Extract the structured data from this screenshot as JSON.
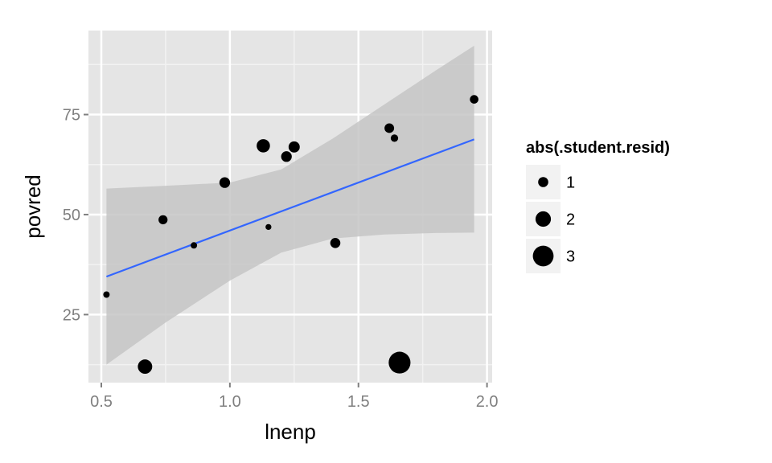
{
  "chart_data": {
    "type": "scatter",
    "xlabel": "lnenp",
    "ylabel": "povred",
    "xlim": [
      0.45,
      2.02
    ],
    "ylim": [
      8,
      96
    ],
    "x_ticks": [
      0.5,
      1.0,
      1.5,
      2.0
    ],
    "x_tick_labels": [
      "0.5",
      "1.0",
      "1.5",
      "2.0"
    ],
    "y_ticks": [
      25,
      50,
      75
    ],
    "y_tick_labels": [
      "25",
      "50",
      "75"
    ],
    "grid": true,
    "legend_position": "right",
    "legend": {
      "title": "abs(.student.resid)",
      "entries": [
        {
          "label": "1",
          "value": 1
        },
        {
          "label": "2",
          "value": 2
        },
        {
          "label": "3",
          "value": 3
        }
      ]
    },
    "points": [
      {
        "x": 0.52,
        "y": 30.0,
        "resid": 0.3
      },
      {
        "x": 0.67,
        "y": 12.0,
        "resid": 1.8
      },
      {
        "x": 0.74,
        "y": 48.7,
        "resid": 0.8
      },
      {
        "x": 0.86,
        "y": 42.3,
        "resid": 0.3
      },
      {
        "x": 0.98,
        "y": 58.0,
        "resid": 1.1
      },
      {
        "x": 1.13,
        "y": 67.2,
        "resid": 1.6
      },
      {
        "x": 1.15,
        "y": 46.9,
        "resid": 0.2
      },
      {
        "x": 1.22,
        "y": 64.5,
        "resid": 1.1
      },
      {
        "x": 1.25,
        "y": 66.9,
        "resid": 1.2
      },
      {
        "x": 1.41,
        "y": 42.9,
        "resid": 1.0
      },
      {
        "x": 1.62,
        "y": 71.6,
        "resid": 0.9
      },
      {
        "x": 1.64,
        "y": 69.1,
        "resid": 0.5
      },
      {
        "x": 1.66,
        "y": 13.0,
        "resid": 3.2
      },
      {
        "x": 1.95,
        "y": 78.8,
        "resid": 0.7
      }
    ],
    "fit": {
      "x": [
        0.52,
        1.95
      ],
      "y": [
        34.5,
        68.8
      ]
    },
    "confidence_band": {
      "x": [
        0.52,
        0.75,
        1.0,
        1.2,
        1.4,
        1.6,
        1.8,
        1.95
      ],
      "lower": [
        12.5,
        23.0,
        33.5,
        40.5,
        44.0,
        45.0,
        45.4,
        45.5
      ],
      "upper": [
        56.5,
        57.2,
        58.0,
        61.3,
        69.0,
        77.5,
        86.0,
        92.2
      ]
    },
    "colors": {
      "panel": "#e5e5e5",
      "grid_major": "#ffffff",
      "grid_minor": "#f2f2f2",
      "band": "#c6c6c6",
      "fit_line": "#3366ff",
      "points": "#000000",
      "legend_key_bg": "#f2f2f2"
    }
  }
}
